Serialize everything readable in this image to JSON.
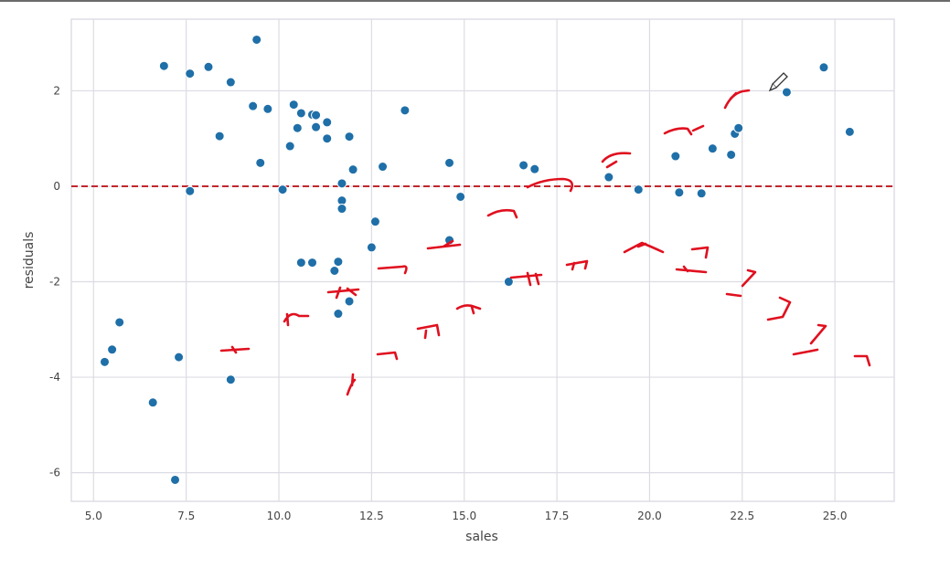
{
  "chart_data": {
    "type": "scatter",
    "title": "",
    "xlabel": "sales",
    "ylabel": "residuals",
    "xlim": [
      4.4,
      26.6
    ],
    "ylim": [
      -6.6,
      3.5
    ],
    "xticks": [
      5.0,
      7.5,
      10.0,
      12.5,
      15.0,
      17.5,
      20.0,
      22.5,
      25.0
    ],
    "xtick_labels": [
      "5.0",
      "7.5",
      "10.0",
      "12.5",
      "15.0",
      "17.5",
      "20.0",
      "22.5",
      "25.0"
    ],
    "yticks": [
      2,
      0,
      -2,
      -4,
      -6
    ],
    "ytick_labels": [
      "2",
      "0",
      "-2",
      "-4",
      "-6"
    ],
    "grid": true,
    "point_color": "#1f6fa8",
    "reference_line": {
      "y": 0,
      "style": "dashed",
      "color": "#c0272d"
    },
    "points": [
      [
        5.3,
        -3.68
      ],
      [
        5.5,
        -3.42
      ],
      [
        5.7,
        -2.85
      ],
      [
        6.6,
        -4.53
      ],
      [
        6.9,
        2.52
      ],
      [
        7.2,
        -6.15
      ],
      [
        7.3,
        -3.58
      ],
      [
        7.6,
        2.36
      ],
      [
        7.6,
        -0.1
      ],
      [
        8.1,
        2.5
      ],
      [
        8.4,
        1.05
      ],
      [
        8.7,
        2.18
      ],
      [
        8.7,
        -4.05
      ],
      [
        9.3,
        1.68
      ],
      [
        9.4,
        3.07
      ],
      [
        9.5,
        0.49
      ],
      [
        9.7,
        1.62
      ],
      [
        10.1,
        -0.07
      ],
      [
        10.3,
        0.84
      ],
      [
        10.4,
        1.71
      ],
      [
        10.5,
        1.22
      ],
      [
        10.6,
        1.53
      ],
      [
        10.6,
        -1.6
      ],
      [
        10.9,
        1.5
      ],
      [
        10.9,
        -1.6
      ],
      [
        11.0,
        1.49
      ],
      [
        11.0,
        1.24
      ],
      [
        11.3,
        1.34
      ],
      [
        11.3,
        1.0
      ],
      [
        11.5,
        -1.77
      ],
      [
        11.6,
        -2.67
      ],
      [
        11.6,
        -1.58
      ],
      [
        11.7,
        0.06
      ],
      [
        11.7,
        -0.3
      ],
      [
        11.7,
        -0.47
      ],
      [
        11.9,
        1.04
      ],
      [
        11.9,
        -2.41
      ],
      [
        12.0,
        0.35
      ],
      [
        12.5,
        -1.28
      ],
      [
        12.6,
        -0.74
      ],
      [
        12.8,
        0.41
      ],
      [
        13.4,
        1.59
      ],
      [
        14.6,
        0.49
      ],
      [
        14.6,
        -1.13
      ],
      [
        14.9,
        -0.22
      ],
      [
        16.2,
        -2.0
      ],
      [
        16.6,
        0.44
      ],
      [
        16.9,
        0.36
      ],
      [
        18.9,
        0.19
      ],
      [
        19.7,
        -0.07
      ],
      [
        20.7,
        0.63
      ],
      [
        20.8,
        -0.13
      ],
      [
        21.4,
        -0.15
      ],
      [
        21.7,
        0.79
      ],
      [
        22.2,
        0.66
      ],
      [
        22.3,
        1.1
      ],
      [
        22.4,
        1.22
      ],
      [
        23.7,
        1.97
      ],
      [
        24.7,
        2.49
      ],
      [
        25.4,
        1.14
      ]
    ]
  }
}
